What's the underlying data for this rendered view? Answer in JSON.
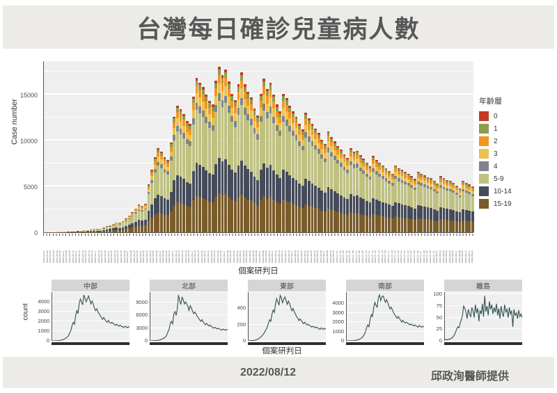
{
  "header": {
    "title": "台灣每日確診兒童病人數"
  },
  "footer": {
    "date": "2022/08/12",
    "credit": "邱政洵醫師提供"
  },
  "colors": {
    "line": "#2f4f4f",
    "panel_bg": "#efefef",
    "band_bg": "#ecebe8",
    "title_text": "#575757"
  },
  "chart_data": [
    {
      "type": "bar",
      "stacked": true,
      "title": "台灣每日確診兒童病人數",
      "xlabel": "個案研判日",
      "ylabel": "Case number",
      "legend_title": "年齡層",
      "legend_position": "right",
      "yticks": [
        0,
        5000,
        10000,
        15000
      ],
      "ylim": [
        0,
        18700
      ],
      "x_date_start": "2022-04-01",
      "x_date_end": "2022-08-12",
      "n_days": 134,
      "totals": [
        35,
        40,
        38,
        36,
        55,
        70,
        85,
        100,
        115,
        105,
        120,
        160,
        210,
        260,
        320,
        380,
        360,
        400,
        520,
        650,
        800,
        950,
        1100,
        1050,
        1200,
        1500,
        1850,
        2200,
        2600,
        3000,
        2900,
        3100,
        5200,
        6800,
        8200,
        9150,
        8800,
        8200,
        7900,
        9800,
        12600,
        13800,
        13400,
        12900,
        12100,
        11800,
        14800,
        16800,
        16300,
        15800,
        15000,
        14300,
        13900,
        16500,
        18000,
        17100,
        17700,
        16400,
        15100,
        14400,
        16100,
        17400,
        16100,
        15300,
        14700,
        13500,
        12700,
        15100,
        16700,
        15600,
        16300,
        15000,
        13900,
        13200,
        15100,
        14600,
        13800,
        13200,
        12600,
        11800,
        11200,
        13000,
        12400,
        11800,
        11300,
        10800,
        10100,
        9600,
        11000,
        10400,
        9900,
        9400,
        9000,
        8500,
        8100,
        9200,
        8800,
        8900,
        8400,
        8000,
        7600,
        7200,
        8300,
        7900,
        7600,
        7300,
        7000,
        6700,
        6400,
        7300,
        7000,
        6800,
        6600,
        6400,
        6100,
        5800,
        6600,
        6400,
        6200,
        6000,
        5900,
        5600,
        5300,
        6100,
        5900,
        5700,
        5600,
        5400,
        5100,
        4800,
        5600,
        5400,
        5200,
        5000
      ],
      "series": [
        {
          "name": "0",
          "color": "#c23926",
          "share": 0.017
        },
        {
          "name": "1",
          "color": "#8e9c4e",
          "share": 0.033
        },
        {
          "name": "2",
          "color": "#f5941f",
          "share": 0.05
        },
        {
          "name": "3",
          "color": "#ecc14f",
          "share": 0.06
        },
        {
          "name": "4",
          "color": "#7e848a",
          "share": 0.045
        },
        {
          "name": "5-9",
          "color": "#bfc180",
          "share": 0.345
        },
        {
          "name": "10-14",
          "color": "#454b5a",
          "share": 0.215
        },
        {
          "name": "15-19",
          "color": "#7a5c2a",
          "share": 0.235
        }
      ],
      "stack_order_bottom_to_top": [
        "15-19",
        "10-14",
        "5-9",
        "4",
        "3",
        "2",
        "1",
        "0"
      ]
    },
    {
      "type": "line",
      "xlabel": "個案研判日",
      "ylabel": "count",
      "line_color": "#2f4f4f",
      "sample_step_days": 2,
      "facets": [
        {
          "name": "中部",
          "yticks": [
            0,
            1000,
            2000,
            3000,
            4000
          ],
          "ylim": [
            0,
            5000
          ],
          "values": [
            5,
            6,
            8,
            12,
            15,
            22,
            35,
            55,
            80,
            120,
            170,
            230,
            300,
            400,
            560,
            800,
            1100,
            1600,
            1900,
            1700,
            2600,
            3100,
            2800,
            3800,
            4300,
            4000,
            3700,
            4700,
            4400,
            4000,
            4300,
            4600,
            4200,
            3800,
            4100,
            3800,
            3400,
            3100,
            3300,
            3000,
            2800,
            2600,
            2400,
            2200,
            2400,
            2200,
            2000,
            1900,
            2100,
            1900,
            1800,
            1900,
            1800,
            1700,
            1600,
            1700,
            1600,
            1500,
            1600,
            1500,
            1450,
            1350,
            1500,
            1450,
            1350,
            1450,
            1400
          ]
        },
        {
          "name": "北部",
          "yticks": [
            0,
            3000,
            6000,
            9000
          ],
          "ylim": [
            0,
            11500
          ],
          "values": [
            15,
            18,
            28,
            45,
            48,
            70,
            110,
            170,
            200,
            300,
            430,
            560,
            700,
            950,
            1400,
            2100,
            2700,
            4200,
            4600,
            4000,
            6300,
            6900,
            6000,
            7600,
            10800,
            9500,
            8600,
            10300,
            9800,
            8700,
            9200,
            8800,
            8100,
            7200,
            8300,
            7800,
            7000,
            6400,
            6800,
            6300,
            5800,
            5400,
            5000,
            4600,
            5000,
            4500,
            4200,
            3800,
            4100,
            3800,
            3500,
            3700,
            3400,
            3200,
            3000,
            3200,
            3000,
            2800,
            3000,
            2800,
            2700,
            2500,
            2800,
            2700,
            2500,
            2700,
            2600
          ]
        },
        {
          "name": "東部",
          "yticks": [
            0,
            200,
            400
          ],
          "ylim": [
            0,
            600
          ],
          "values": [
            2,
            2,
            3,
            4,
            5,
            7,
            10,
            15,
            22,
            30,
            42,
            55,
            70,
            90,
            115,
            140,
            170,
            220,
            260,
            240,
            330,
            380,
            350,
            450,
            520,
            480,
            440,
            560,
            530,
            470,
            510,
            540,
            500,
            450,
            490,
            460,
            410,
            370,
            400,
            360,
            330,
            300,
            280,
            250,
            270,
            250,
            230,
            210,
            230,
            210,
            195,
            205,
            190,
            180,
            170,
            180,
            170,
            160,
            170,
            160,
            150,
            140,
            160,
            150,
            140,
            155,
            145
          ]
        },
        {
          "name": "南部",
          "yticks": [
            0,
            1000,
            2000,
            3000,
            4000
          ],
          "ylim": [
            0,
            5200
          ],
          "values": [
            4,
            5,
            7,
            10,
            13,
            18,
            28,
            45,
            65,
            95,
            140,
            190,
            250,
            340,
            470,
            680,
            950,
            1400,
            1700,
            1500,
            2300,
            2800,
            2600,
            3500,
            4100,
            3800,
            3600,
            4600,
            4900,
            4300,
            4700,
            4800,
            4500,
            4100,
            4400,
            4100,
            3700,
            3400,
            3600,
            3300,
            3000,
            2800,
            2600,
            2400,
            2600,
            2400,
            2200,
            2000,
            2200,
            2000,
            1900,
            2000,
            1900,
            1800,
            1700,
            1800,
            1700,
            1600,
            1700,
            1600,
            1550,
            1450,
            1650,
            1550,
            1450,
            1550,
            1500
          ]
        },
        {
          "name": "離島",
          "yticks": [
            0,
            25,
            50,
            75,
            100
          ],
          "ylim": [
            0,
            105
          ],
          "values": [
            2,
            3,
            2,
            4,
            3,
            5,
            6,
            9,
            12,
            18,
            25,
            30,
            28,
            38,
            45,
            55,
            75,
            70,
            62,
            48,
            68,
            58,
            52,
            72,
            65,
            50,
            78,
            60,
            70,
            42,
            66,
            58,
            80,
            52,
            97,
            63,
            75,
            55,
            85,
            68,
            78,
            58,
            72,
            62,
            80,
            55,
            70,
            48,
            75,
            60,
            52,
            78,
            62,
            68,
            50,
            72,
            58,
            65,
            30,
            68,
            55,
            60,
            48,
            66,
            52,
            58,
            50
          ]
        }
      ]
    }
  ]
}
